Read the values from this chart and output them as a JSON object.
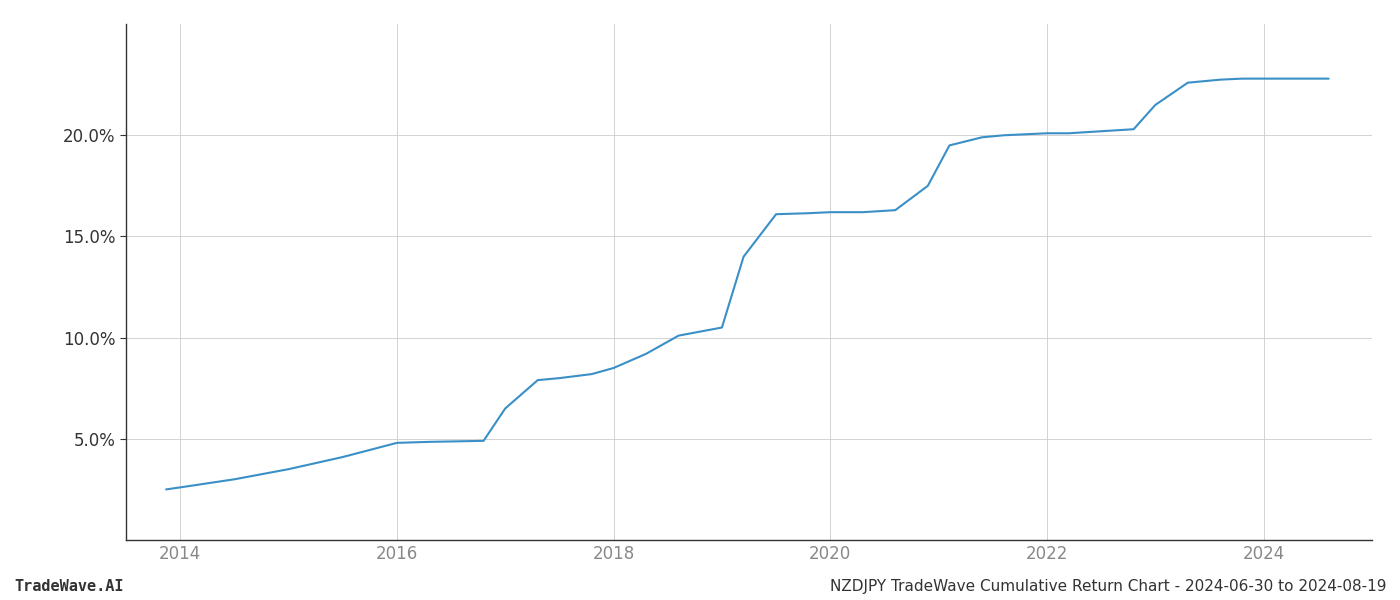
{
  "title": "NZDJPY TradeWave Cumulative Return Chart - 2024-06-30 to 2024-08-19",
  "watermark": "TradeWave.AI",
  "line_color": "#3a8fc7",
  "background_color": "#ffffff",
  "grid_color": "#cccccc",
  "x_years": [
    2013.87,
    2014.0,
    2014.5,
    2015.0,
    2015.5,
    2016.0,
    2016.3,
    2016.8,
    2017.0,
    2017.3,
    2017.5,
    2017.8,
    2018.0,
    2018.3,
    2018.6,
    2018.8,
    2019.0,
    2019.2,
    2019.5,
    2019.8,
    2020.0,
    2020.3,
    2020.6,
    2020.9,
    2021.1,
    2021.4,
    2021.6,
    2021.8,
    2022.0,
    2022.2,
    2022.5,
    2022.8,
    2023.0,
    2023.3,
    2023.6,
    2023.8,
    2024.0,
    2024.3,
    2024.6
  ],
  "y_values": [
    2.5,
    2.6,
    3.0,
    3.5,
    4.1,
    4.8,
    4.85,
    4.9,
    6.5,
    7.9,
    8.0,
    8.2,
    8.5,
    9.2,
    10.1,
    10.3,
    10.5,
    14.0,
    16.1,
    16.15,
    16.2,
    16.2,
    16.3,
    17.5,
    19.5,
    19.9,
    20.0,
    20.05,
    20.1,
    20.1,
    20.2,
    20.3,
    21.5,
    22.6,
    22.75,
    22.8,
    22.8,
    22.8,
    22.8
  ],
  "xlim": [
    2013.5,
    2025.0
  ],
  "ylim": [
    0,
    25.5
  ],
  "yticks": [
    5.0,
    10.0,
    15.0,
    20.0
  ],
  "xticks": [
    2014,
    2016,
    2018,
    2020,
    2022,
    2024
  ],
  "line_width": 1.5,
  "spine_color": "#333333",
  "axis_color": "#999999",
  "tick_label_color": "#888888",
  "title_color": "#333333",
  "title_fontsize": 11,
  "watermark_fontsize": 11,
  "tick_fontsize": 12
}
